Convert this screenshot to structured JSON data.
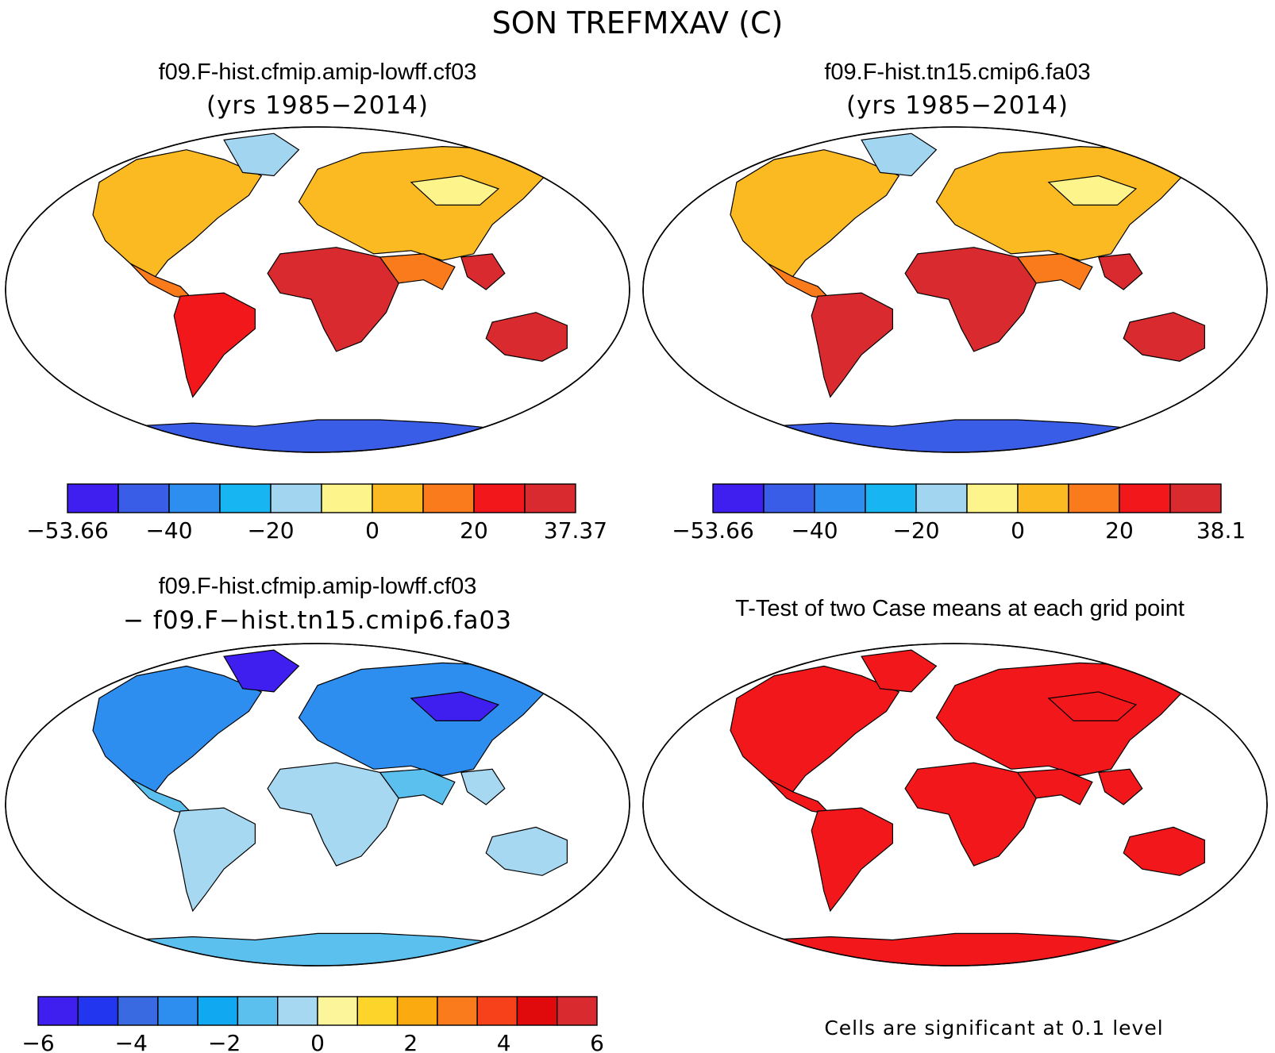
{
  "figure_title": "SON TREFMXAV (C)",
  "panels": [
    {
      "title": "f09.F-hist.cfmip.amip-lowff.cf03",
      "subtitle": "(yrs 1985−2014)",
      "colorbar": {
        "colors": [
          "#3f1ff0",
          "#3a5de8",
          "#2e8ef0",
          "#17b6f2",
          "#a2d6f0",
          "#fdf48c",
          "#fbba22",
          "#f97b1c",
          "#f2171a",
          "#d92b2f"
        ],
        "tick_labels": [
          "−53.66",
          "−40",
          "−20",
          "0",
          "20",
          "37.37"
        ]
      },
      "fills": {
        "north": "#fbba22",
        "subtropics": "#f97b1c",
        "tropics": "#d92b2f",
        "south_america": "#f2171a",
        "australia": "#d92b2f",
        "greenland": "#a2d6f0",
        "antarctica": "#3a5de8",
        "siberia": "#fdf48c"
      }
    },
    {
      "title": "f09.F-hist.tn15.cmip6.fa03",
      "subtitle": "(yrs 1985−2014)",
      "colorbar": {
        "colors": [
          "#3f1ff0",
          "#3a5de8",
          "#2e8ef0",
          "#17b6f2",
          "#a2d6f0",
          "#fdf48c",
          "#fbba22",
          "#f97b1c",
          "#f2171a",
          "#d92b2f"
        ],
        "tick_labels": [
          "−53.66",
          "−40",
          "−20",
          "0",
          "20",
          "38.1"
        ]
      },
      "fills": {
        "north": "#fbba22",
        "subtropics": "#f97b1c",
        "tropics": "#d92b2f",
        "south_america": "#d92b2f",
        "australia": "#d92b2f",
        "greenland": "#a2d6f0",
        "antarctica": "#3a5de8",
        "siberia": "#fdf48c"
      }
    },
    {
      "title": "f09.F-hist.cfmip.amip-lowff.cf03",
      "subtitle": "− f09.F−hist.tn15.cmip6.fa03",
      "colorbar": {
        "colors": [
          "#3f1ff0",
          "#2236f0",
          "#3a6ae2",
          "#2e8ef0",
          "#10a8f0",
          "#5cc0ee",
          "#a7d8f2",
          "#fdf59a",
          "#fcd42a",
          "#fbab0f",
          "#f97b1c",
          "#f6411a",
          "#e00a0d",
          "#d92b2f"
        ],
        "tick_labels": [
          "−6",
          "−4",
          "−2",
          "0",
          "2",
          "4",
          "6"
        ]
      },
      "fills": {
        "north": "#2e8ef0",
        "subtropics": "#5cc0ee",
        "tropics": "#a7d8f2",
        "south_america": "#a7d8f2",
        "australia": "#a7d8f2",
        "greenland": "#3f1ff0",
        "antarctica": "#5cc0ee",
        "siberia": "#3f1ff0"
      }
    },
    {
      "title": "T-Test of two Case means at each grid point",
      "note": "Cells are significant at 0.1 level",
      "fills": {
        "north": "#f2171a",
        "subtropics": "#f2171a",
        "tropics": "#f2171a",
        "south_america": "#f2171a",
        "australia": "#f2171a",
        "greenland": "#f2171a",
        "antarctica": "#f2171a",
        "siberia": "#f2171a"
      }
    }
  ]
}
